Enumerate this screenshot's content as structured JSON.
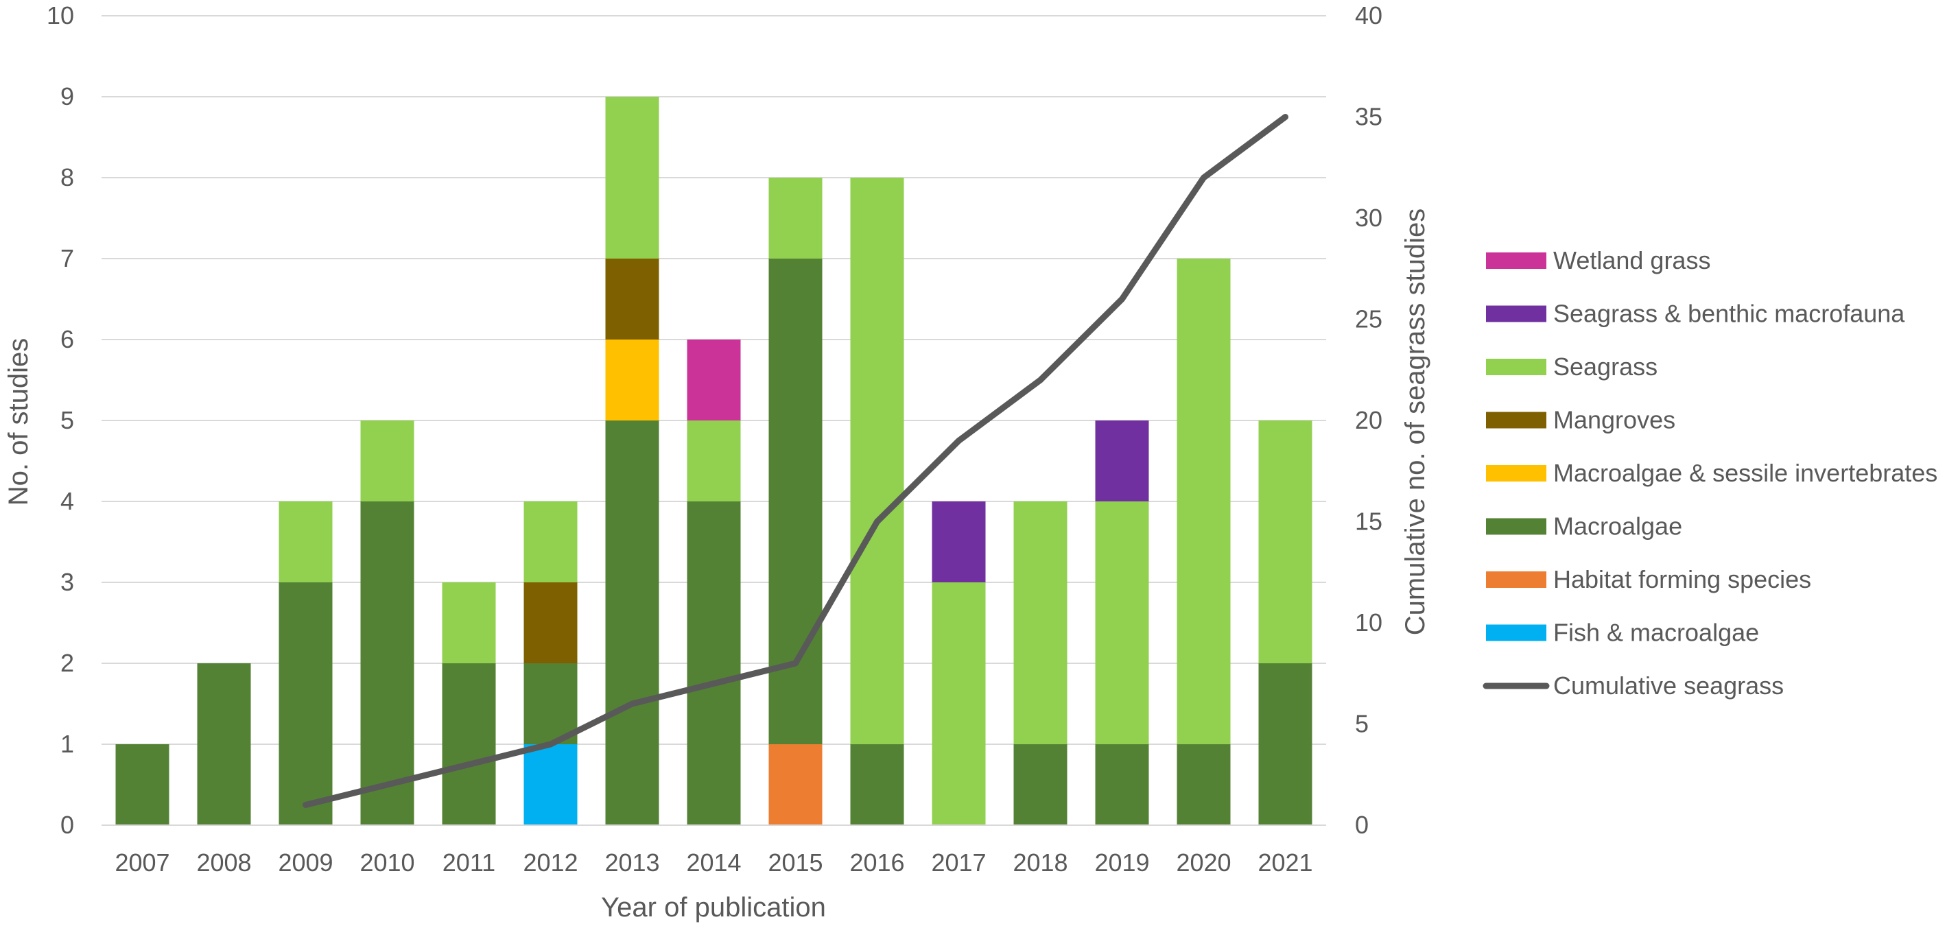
{
  "chart_data": {
    "type": "bar",
    "stacked": true,
    "categories": [
      "2007",
      "2008",
      "2009",
      "2010",
      "2011",
      "2012",
      "2013",
      "2014",
      "2015",
      "2016",
      "2017",
      "2018",
      "2019",
      "2020",
      "2021"
    ],
    "stack_order": [
      "Fish & macroalgae",
      "Habitat forming species",
      "Macroalgae",
      "Macroalgae & sessile invertebrates",
      "Mangroves",
      "Seagrass",
      "Seagrass & benthic macrofauna",
      "Wetland grass"
    ],
    "series": [
      {
        "name": "Wetland grass",
        "color": "#CC3399",
        "values": [
          0,
          0,
          0,
          0,
          0,
          0,
          0,
          1,
          0,
          0,
          0,
          0,
          0,
          0,
          0
        ]
      },
      {
        "name": "Seagrass & benthic macrofauna",
        "color": "#7030A0",
        "values": [
          0,
          0,
          0,
          0,
          0,
          0,
          0,
          0,
          0,
          0,
          1,
          0,
          1,
          0,
          0
        ]
      },
      {
        "name": "Seagrass",
        "color": "#92D050",
        "values": [
          0,
          0,
          1,
          1,
          1,
          1,
          2,
          1,
          1,
          7,
          3,
          3,
          3,
          6,
          3
        ]
      },
      {
        "name": "Mangroves",
        "color": "#7F6000",
        "values": [
          0,
          0,
          0,
          0,
          0,
          1,
          1,
          0,
          0,
          0,
          0,
          0,
          0,
          0,
          0
        ]
      },
      {
        "name": "Macroalgae & sessile invertebrates",
        "color": "#FFC000",
        "values": [
          0,
          0,
          0,
          0,
          0,
          0,
          1,
          0,
          0,
          0,
          0,
          0,
          0,
          0,
          0
        ]
      },
      {
        "name": "Macroalgae",
        "color": "#548235",
        "values": [
          1,
          2,
          3,
          4,
          2,
          1,
          5,
          4,
          6,
          1,
          0,
          1,
          1,
          1,
          2
        ]
      },
      {
        "name": "Habitat forming species",
        "color": "#ED7D31",
        "values": [
          0,
          0,
          0,
          0,
          0,
          0,
          0,
          0,
          1,
          0,
          0,
          0,
          0,
          0,
          0
        ]
      },
      {
        "name": "Fish & macroalgae",
        "color": "#00B0F0",
        "values": [
          0,
          0,
          0,
          0,
          0,
          1,
          0,
          0,
          0,
          0,
          0,
          0,
          0,
          0,
          0
        ]
      }
    ],
    "line_series": {
      "name": "Cumulative seagrass",
      "color": "#595959",
      "axis": "secondary",
      "categories": [
        "2009",
        "2010",
        "2011",
        "2012",
        "2013",
        "2014",
        "2015",
        "2016",
        "2017",
        "2018",
        "2019",
        "2020",
        "2021"
      ],
      "values": [
        1,
        2,
        3,
        4,
        6,
        7,
        8,
        15,
        19,
        22,
        26,
        32,
        35
      ]
    },
    "xlabel": "Year of publication",
    "ylabel": "No. of studies",
    "y2label": "Cumulative no. of seagrass studies",
    "ylim": [
      0,
      10
    ],
    "y2lim": [
      0,
      40
    ],
    "yticks": [
      "0",
      "1",
      "2",
      "3",
      "4",
      "5",
      "6",
      "7",
      "8",
      "9",
      "10"
    ],
    "y2ticks": [
      "0",
      "5",
      "10",
      "15",
      "20",
      "25",
      "30",
      "35",
      "40"
    ],
    "grid": true,
    "legend_position": "right",
    "legend": [
      "Wetland grass",
      "Seagrass & benthic macrofauna",
      "Seagrass",
      "Mangroves",
      "Macroalgae & sessile invertebrates",
      "Macroalgae",
      "Habitat forming species",
      "Fish & macroalgae",
      "Cumulative seagrass"
    ]
  }
}
